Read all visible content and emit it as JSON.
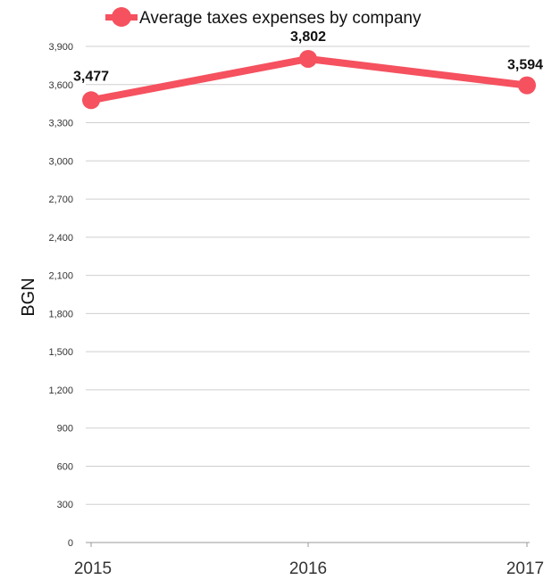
{
  "chart_data": {
    "type": "line",
    "title": "",
    "xlabel": "",
    "ylabel": "BGN",
    "categories": [
      "2015",
      "2016",
      "2017"
    ],
    "series": [
      {
        "name": "Average taxes expenses by company",
        "values": [
          3477,
          3802,
          3594
        ],
        "color": "#f5515f"
      }
    ],
    "data_labels": [
      "3,477",
      "3,802",
      "3,594"
    ],
    "y_ticks": [
      0,
      300,
      600,
      900,
      1200,
      1500,
      1800,
      2100,
      2400,
      2700,
      3000,
      3300,
      3600,
      3900
    ],
    "y_tick_labels": [
      "0",
      "300",
      "600",
      "900",
      "1,200",
      "1,500",
      "1,800",
      "2,100",
      "2,400",
      "2,700",
      "3,000",
      "3,300",
      "3,600",
      "3,900"
    ],
    "ylim": [
      0,
      3900
    ],
    "grid": true,
    "legend": "top-center"
  }
}
